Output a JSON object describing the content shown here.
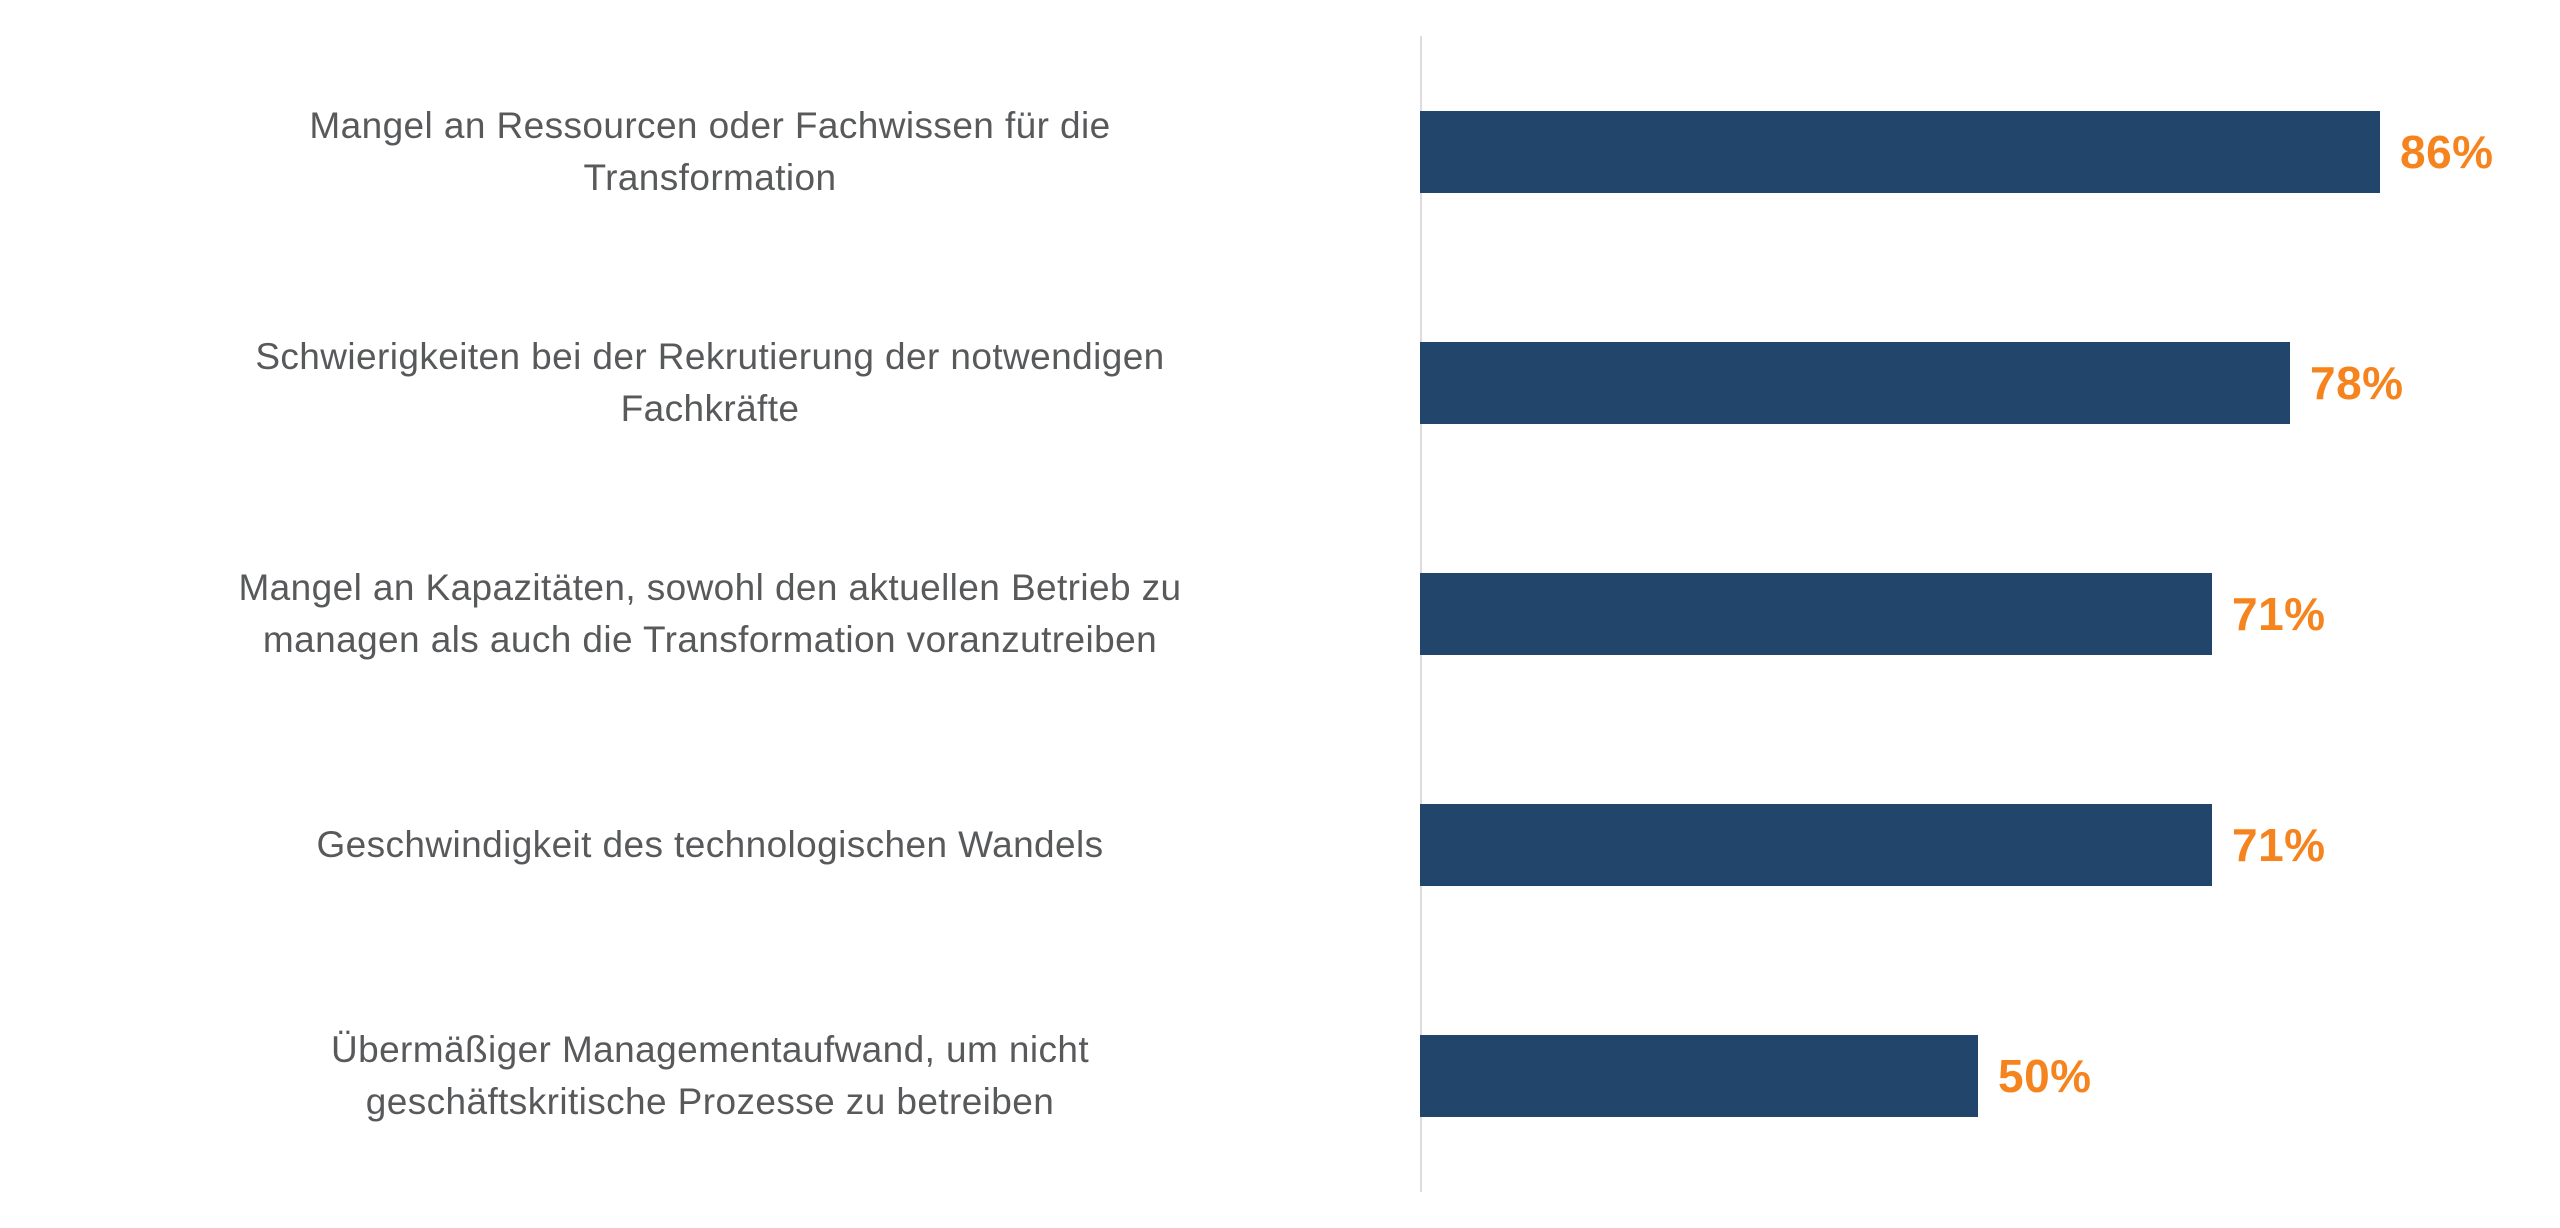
{
  "chart_data": {
    "type": "bar",
    "orientation": "horizontal",
    "title": "",
    "xlabel": "",
    "ylabel": "",
    "xlim": [
      0,
      100
    ],
    "grid": false,
    "legend": false,
    "categories": [
      "Mangel an Ressourcen oder Fachwissen für die\nTransformation",
      "Schwierigkeiten bei der Rekrutierung der notwendigen\nFachkräfte",
      "Mangel an Kapazitäten, sowohl den aktuellen Betrieb zu\nmanagen als auch die Transformation voranzutreiben",
      "Geschwindigkeit des technologischen Wandels",
      "Übermäßiger Managementaufwand, um nicht\ngeschäftskritische Prozesse zu betreiben"
    ],
    "values": [
      86,
      78,
      71,
      71,
      50
    ],
    "value_labels": [
      "86%",
      "78%",
      "71%",
      "71%",
      "50%"
    ],
    "colors": {
      "bar": "#21456b",
      "value_label": "#f6841e",
      "category_label": "#58595b",
      "baseline": "#dcdcdc",
      "background": "#ffffff"
    }
  }
}
